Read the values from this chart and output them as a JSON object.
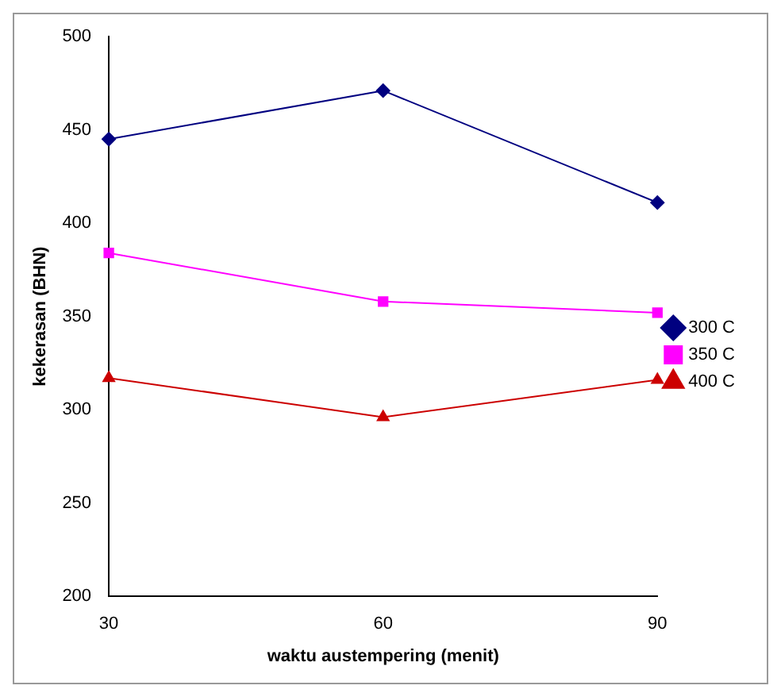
{
  "chart_data": {
    "type": "line",
    "xlabel": "waktu austempering (menit)",
    "ylabel": "kekerasan (BHN)",
    "categories": [
      "30",
      "60",
      "90"
    ],
    "series": [
      {
        "name": "300 C",
        "color": "#000080",
        "marker": "diamond",
        "values": [
          445,
          471,
          411
        ]
      },
      {
        "name": "350 C",
        "color": "#ff00ff",
        "marker": "square",
        "values": [
          384,
          358,
          352
        ]
      },
      {
        "name": "400 C",
        "color": "#cc0000",
        "marker": "triangle",
        "values": [
          317,
          296,
          316
        ]
      }
    ],
    "ylim": [
      200,
      500
    ],
    "yticks": [
      200,
      250,
      300,
      350,
      400,
      450,
      500
    ],
    "grid": false,
    "legend": "right"
  }
}
